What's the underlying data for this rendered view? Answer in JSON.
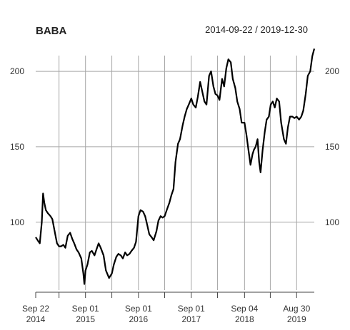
{
  "chart_data": {
    "type": "line",
    "title": "BABA",
    "date_range": "2014-09-22 / 2019-12-30",
    "xlabel": "",
    "ylabel": "",
    "ylim": [
      55,
      218
    ],
    "grid": true,
    "y_ticks": [
      100,
      150,
      200
    ],
    "y_tick_labels": [
      "100",
      "150",
      "200"
    ],
    "x_tick_labels": [
      {
        "date": "2014-09-22",
        "line1": "Sep 22",
        "line2": "2014"
      },
      {
        "date": "2015-09-01",
        "line1": "Sep 01",
        "line2": "2015"
      },
      {
        "date": "2016-09-01",
        "line1": "Sep 01",
        "line2": "2016"
      },
      {
        "date": "2017-09-01",
        "line1": "Sep 01",
        "line2": "2017"
      },
      {
        "date": "2018-09-04",
        "line1": "Sep 04",
        "line2": "2018"
      },
      {
        "date": "2019-08-30",
        "line1": "Aug 30",
        "line2": "2019"
      }
    ],
    "x_minor_ticks": [
      "2015-03-02",
      "2016-03-01",
      "2017-03-01",
      "2018-03-01",
      "2019-03-01"
    ],
    "x_range": [
      "2014-09-22",
      "2019-12-30"
    ],
    "series": [
      {
        "color": "#000000",
        "x": [
          "2014-09-22",
          "2014-10-06",
          "2014-10-20",
          "2014-11-03",
          "2014-11-12",
          "2014-11-20",
          "2014-12-01",
          "2014-12-15",
          "2015-01-02",
          "2015-01-15",
          "2015-01-29",
          "2015-02-16",
          "2015-03-02",
          "2015-03-16",
          "2015-04-01",
          "2015-04-15",
          "2015-05-01",
          "2015-05-18",
          "2015-06-01",
          "2015-06-15",
          "2015-07-01",
          "2015-07-15",
          "2015-08-03",
          "2015-08-17",
          "2015-08-24",
          "2015-09-01",
          "2015-09-15",
          "2015-10-01",
          "2015-10-15",
          "2015-11-02",
          "2015-11-16",
          "2015-12-01",
          "2015-12-15",
          "2016-01-04",
          "2016-01-20",
          "2016-02-11",
          "2016-03-01",
          "2016-03-15",
          "2016-04-01",
          "2016-04-15",
          "2016-05-02",
          "2016-05-16",
          "2016-06-01",
          "2016-06-15",
          "2016-07-01",
          "2016-07-15",
          "2016-08-01",
          "2016-08-15",
          "2016-09-01",
          "2016-09-15",
          "2016-10-03",
          "2016-10-17",
          "2016-11-01",
          "2016-11-15",
          "2016-12-01",
          "2016-12-15",
          "2017-01-03",
          "2017-01-17",
          "2017-02-01",
          "2017-02-15",
          "2017-03-01",
          "2017-03-15",
          "2017-04-03",
          "2017-04-17",
          "2017-05-01",
          "2017-05-15",
          "2017-06-01",
          "2017-06-15",
          "2017-07-03",
          "2017-07-17",
          "2017-08-01",
          "2017-08-15",
          "2017-09-01",
          "2017-09-15",
          "2017-10-02",
          "2017-10-16",
          "2017-11-01",
          "2017-11-15",
          "2017-12-01",
          "2017-12-15",
          "2018-01-02",
          "2018-01-16",
          "2018-02-01",
          "2018-02-15",
          "2018-03-01",
          "2018-03-15",
          "2018-04-02",
          "2018-04-16",
          "2018-05-01",
          "2018-05-15",
          "2018-06-01",
          "2018-06-15",
          "2018-07-02",
          "2018-07-16",
          "2018-08-01",
          "2018-08-15",
          "2018-09-04",
          "2018-09-17",
          "2018-10-01",
          "2018-10-15",
          "2018-10-29",
          "2018-11-08",
          "2018-11-20",
          "2018-12-03",
          "2018-12-14",
          "2018-12-24",
          "2019-01-07",
          "2019-01-22",
          "2019-02-04",
          "2019-02-19",
          "2019-03-04",
          "2019-03-18",
          "2019-04-01",
          "2019-04-15",
          "2019-05-01",
          "2019-05-15",
          "2019-06-03",
          "2019-06-17",
          "2019-07-01",
          "2019-07-15",
          "2019-08-01",
          "2019-08-15",
          "2019-08-30",
          "2019-09-16",
          "2019-10-01",
          "2019-10-15",
          "2019-11-01",
          "2019-11-15",
          "2019-12-02",
          "2019-12-16",
          "2019-12-30"
        ],
        "y": [
          90,
          88,
          86,
          100,
          119,
          113,
          108,
          106,
          104,
          102,
          95,
          86,
          84,
          84,
          85,
          83,
          91,
          93,
          89,
          86,
          82,
          80,
          76,
          66,
          59,
          68,
          72,
          80,
          81,
          78,
          82,
          86,
          83,
          78,
          68,
          63,
          66,
          72,
          77,
          79,
          78,
          76,
          80,
          78,
          79,
          81,
          83,
          87,
          104,
          108,
          107,
          104,
          98,
          92,
          90,
          88,
          94,
          101,
          104,
          103,
          104,
          108,
          113,
          118,
          122,
          140,
          152,
          155,
          164,
          170,
          175,
          178,
          182,
          178,
          176,
          183,
          193,
          187,
          180,
          178,
          197,
          200,
          190,
          185,
          184,
          181,
          195,
          190,
          202,
          208,
          206,
          195,
          189,
          180,
          175,
          166,
          166,
          158,
          148,
          138,
          145,
          148,
          150,
          155,
          140,
          133,
          148,
          160,
          168,
          170,
          178,
          180,
          176,
          182,
          180,
          166,
          155,
          152,
          163,
          170,
          170,
          169,
          170,
          168,
          170,
          174,
          185,
          197,
          200,
          210,
          215
        ]
      }
    ]
  }
}
